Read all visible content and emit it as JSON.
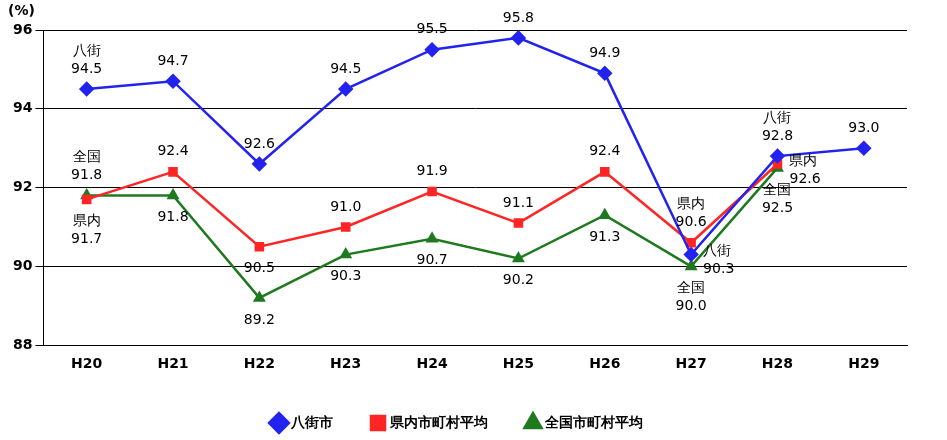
{
  "chart_data": {
    "type": "line",
    "y_label": "(%)",
    "categories": [
      "H20",
      "H21",
      "H22",
      "H23",
      "H24",
      "H25",
      "H26",
      "H27",
      "H28",
      "H29"
    ],
    "series": [
      {
        "name": "八街市",
        "color": "#2323f0",
        "marker": "diamond",
        "values": [
          94.5,
          94.7,
          92.6,
          94.5,
          95.5,
          95.8,
          94.9,
          90.3,
          92.8,
          93.0
        ],
        "value_labels": [
          "94.5",
          "94.7",
          "92.6",
          "94.5",
          "95.5",
          "95.8",
          "94.9",
          "90.3",
          "92.8",
          "93.0"
        ]
      },
      {
        "name": "県内市町村平均",
        "color": "#ff2525",
        "marker": "square",
        "values": [
          91.7,
          92.4,
          90.5,
          91.0,
          91.9,
          91.1,
          92.4,
          90.6,
          92.6,
          null
        ],
        "value_labels": [
          "91.7",
          "92.4",
          "90.5",
          "91.0",
          "91.9",
          "91.1",
          "92.4",
          "90.6",
          "92.6",
          null
        ]
      },
      {
        "name": "全国市町村平均",
        "color": "#1f7a1f",
        "marker": "triangle",
        "values": [
          91.8,
          91.8,
          89.2,
          90.3,
          90.7,
          90.2,
          91.3,
          90.0,
          92.5,
          null
        ],
        "value_labels": [
          "91.8",
          "91.8",
          "89.2",
          "90.3",
          "90.7",
          "90.2",
          "91.3",
          "90.0",
          "92.5",
          null
        ]
      }
    ],
    "ylim": [
      88,
      96
    ],
    "yticks": [
      88,
      90,
      92,
      94,
      96
    ],
    "grid": true,
    "legend": "bottom",
    "data_labels": true,
    "annotations": [
      {
        "text": "八街",
        "series": "八街市",
        "category": "H20"
      },
      {
        "text": "八街",
        "series": "八街市",
        "category": "H27"
      },
      {
        "text": "八街",
        "series": "八街市",
        "category": "H28"
      },
      {
        "text": "県内",
        "series": "県内市町村平均",
        "category": "H20"
      },
      {
        "text": "県内",
        "series": "県内市町村平均",
        "category": "H27"
      },
      {
        "text": "県内",
        "series": "県内市町村平均",
        "category": "H28"
      },
      {
        "text": "全国",
        "series": "全国市町村平均",
        "category": "H20"
      },
      {
        "text": "全国",
        "series": "全国市町村平均",
        "category": "H27"
      },
      {
        "text": "全国",
        "series": "全国市町村平均",
        "category": "H28"
      }
    ]
  }
}
